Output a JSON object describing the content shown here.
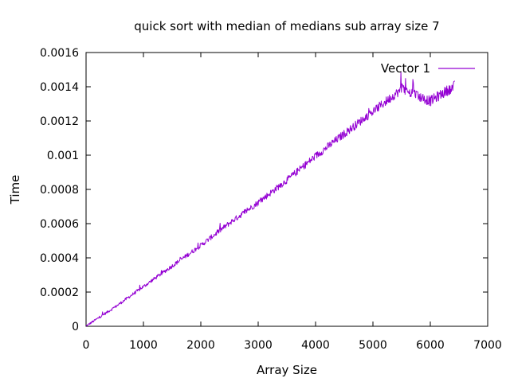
{
  "chart_data": {
    "type": "line",
    "title": "quick sort with median of medians sub array size 7",
    "xlabel": "Array Size",
    "ylabel": "Time",
    "xlim": [
      0,
      7000
    ],
    "ylim": [
      0,
      0.0016
    ],
    "xticks": [
      "0",
      "1000",
      "2000",
      "3000",
      "4000",
      "5000",
      "6000",
      "7000"
    ],
    "yticks": [
      "0",
      "0.0002",
      "0.0004",
      "0.0006",
      "0.0008",
      "0.001",
      "0.0012",
      "0.0014",
      "0.0016"
    ],
    "grid": false,
    "legend_position": "top-right",
    "series": [
      {
        "name": "Vector 1",
        "color": "#9400d3",
        "x": [
          0,
          500,
          1000,
          1500,
          2000,
          2500,
          3000,
          3500,
          4000,
          4500,
          5000,
          5500,
          6000,
          6430
        ],
        "y": [
          0,
          0.00011,
          0.00023,
          0.00035,
          0.00047,
          0.0006,
          0.00072,
          0.00085,
          0.00099,
          0.00112,
          0.00125,
          0.00138,
          0.00131,
          0.0014
        ]
      }
    ]
  }
}
